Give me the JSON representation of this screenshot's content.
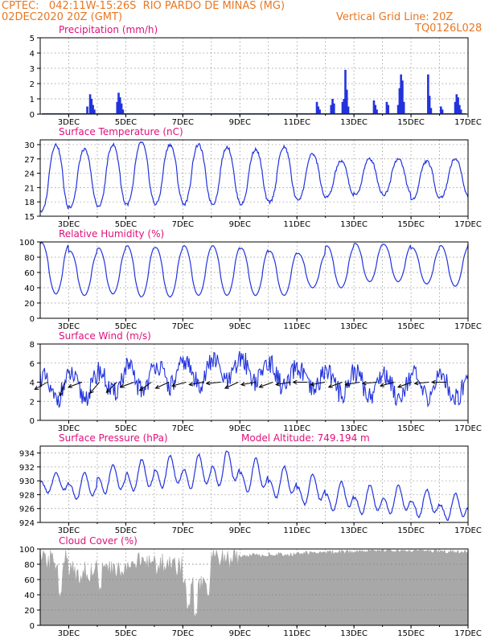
{
  "header": {
    "line1_left": "CPTEC:   042:11W-15:26S  RIO PARDO DE MINAS (MG)",
    "line2_left": "02DEC2020 20Z (GMT)",
    "line2_right": "Vertical Grid Line: 20Z",
    "line3_right": "TQ0126L028"
  },
  "colors": {
    "header": "#e87722",
    "panel_title": "#e0107a",
    "series": "#2233dd",
    "axis": "#000000",
    "grid": "#888888",
    "cloud_fill": "#a8a8a8",
    "wind_arrow": "#000000"
  },
  "chart_data": [
    {
      "type": "bar",
      "title": "Precipitation (mm/h)",
      "xlabel": "",
      "ylabel": "",
      "x_ticks": [
        "3DEC",
        "5DEC",
        "7DEC",
        "9DEC",
        "11DEC",
        "13DEC",
        "15DEC",
        "17DEC"
      ],
      "ylim": [
        0,
        5
      ],
      "y_ticks": [
        0,
        1,
        2,
        3,
        4,
        5
      ],
      "time_range_days": [
        2.0,
        17.0
      ],
      "events": [
        {
          "t": 3.65,
          "v": 0.5
        },
        {
          "t": 3.75,
          "v": 1.3
        },
        {
          "t": 3.8,
          "v": 1.0
        },
        {
          "t": 3.85,
          "v": 0.6
        },
        {
          "t": 3.9,
          "v": 0.3
        },
        {
          "t": 4.7,
          "v": 0.8
        },
        {
          "t": 4.75,
          "v": 1.4
        },
        {
          "t": 4.8,
          "v": 1.1
        },
        {
          "t": 4.85,
          "v": 0.7
        },
        {
          "t": 4.9,
          "v": 0.3
        },
        {
          "t": 11.7,
          "v": 0.8
        },
        {
          "t": 11.75,
          "v": 0.5
        },
        {
          "t": 11.8,
          "v": 0.3
        },
        {
          "t": 12.2,
          "v": 0.6
        },
        {
          "t": 12.25,
          "v": 1.0
        },
        {
          "t": 12.3,
          "v": 0.7
        },
        {
          "t": 12.6,
          "v": 0.8
        },
        {
          "t": 12.65,
          "v": 1.0
        },
        {
          "t": 12.7,
          "v": 2.9
        },
        {
          "t": 12.75,
          "v": 1.6
        },
        {
          "t": 12.8,
          "v": 0.5
        },
        {
          "t": 13.7,
          "v": 0.9
        },
        {
          "t": 13.75,
          "v": 0.6
        },
        {
          "t": 13.8,
          "v": 0.3
        },
        {
          "t": 14.15,
          "v": 0.8
        },
        {
          "t": 14.2,
          "v": 0.6
        },
        {
          "t": 14.55,
          "v": 0.6
        },
        {
          "t": 14.6,
          "v": 1.7
        },
        {
          "t": 14.65,
          "v": 2.6
        },
        {
          "t": 14.7,
          "v": 2.2
        },
        {
          "t": 14.75,
          "v": 0.8
        },
        {
          "t": 15.6,
          "v": 2.6
        },
        {
          "t": 15.65,
          "v": 1.2
        },
        {
          "t": 15.7,
          "v": 0.4
        },
        {
          "t": 16.05,
          "v": 0.5
        },
        {
          "t": 16.1,
          "v": 0.3
        },
        {
          "t": 16.55,
          "v": 0.8
        },
        {
          "t": 16.6,
          "v": 1.3
        },
        {
          "t": 16.65,
          "v": 1.1
        },
        {
          "t": 16.7,
          "v": 0.6
        },
        {
          "t": 16.75,
          "v": 0.3
        }
      ]
    },
    {
      "type": "line",
      "title": "Surface Temperature (nC)",
      "x_ticks": [
        "3DEC",
        "5DEC",
        "7DEC",
        "9DEC",
        "11DEC",
        "13DEC",
        "15DEC",
        "17DEC"
      ],
      "ylim": [
        15,
        31
      ],
      "y_ticks": [
        15,
        18,
        21,
        24,
        27,
        30
      ],
      "daily_max": [
        30.0,
        29.0,
        30.0,
        30.5,
        30.0,
        30.0,
        29.5,
        29.0,
        29.5,
        28.0,
        26.5,
        27.0,
        27.0,
        26.5,
        27.0,
        28.0
      ],
      "daily_min": [
        16.0,
        17.0,
        17.0,
        17.5,
        17.5,
        17.5,
        17.5,
        17.5,
        18.0,
        18.5,
        19.0,
        19.5,
        19.5,
        18.5,
        19.0
      ]
    },
    {
      "type": "line",
      "title": "Relative Humidity (%)",
      "x_ticks": [
        "3DEC",
        "5DEC",
        "7DEC",
        "9DEC",
        "11DEC",
        "13DEC",
        "15DEC",
        "17DEC"
      ],
      "ylim": [
        0,
        100
      ],
      "y_ticks": [
        0,
        20,
        40,
        60,
        80,
        100
      ],
      "daily_max": [
        99,
        88,
        92,
        95,
        93,
        95,
        95,
        92,
        88,
        85,
        95,
        98,
        97,
        92,
        95,
        98
      ],
      "daily_min": [
        32,
        30,
        32,
        28,
        28,
        30,
        30,
        30,
        30,
        40,
        40,
        48,
        48,
        45,
        42
      ]
    },
    {
      "type": "line",
      "title": "Surface Wind (m/s)",
      "x_ticks": [
        "3DEC",
        "5DEC",
        "7DEC",
        "9DEC",
        "11DEC",
        "13DEC",
        "15DEC",
        "17DEC"
      ],
      "ylim": [
        0,
        8
      ],
      "y_ticks": [
        0,
        2,
        4,
        6,
        8
      ],
      "mean_speed": [
        3.4,
        3.6,
        4.0,
        4.4,
        4.8,
        5.0,
        5.2,
        5.3,
        4.6,
        4.2,
        4.0,
        3.8,
        3.7,
        3.6,
        3.5,
        3.2
      ],
      "arrows_direction_deg": [
        210,
        250,
        200,
        230,
        225,
        200,
        215,
        205,
        195,
        190,
        185,
        205,
        190,
        200,
        190,
        180,
        190,
        200,
        190,
        185,
        195,
        200,
        185,
        180
      ]
    },
    {
      "type": "line",
      "title": "Surface Pressure (hPa)",
      "subtitle": "Model Altitude: 749.194 m",
      "x_ticks": [
        "3DEC",
        "5DEC",
        "7DEC",
        "9DEC",
        "11DEC",
        "13DEC",
        "15DEC",
        "17DEC"
      ],
      "ylim": [
        924,
        935
      ],
      "y_ticks": [
        924,
        926,
        928,
        930,
        932,
        934
      ],
      "daily_level": [
        929.5,
        929.0,
        930.0,
        930.5,
        931.0,
        931.0,
        931.5,
        930.5,
        929.5,
        928.5,
        927.5,
        927.0,
        927.0,
        926.5,
        926.0,
        925.5
      ],
      "daily_amplitude": [
        1.6,
        2.2,
        2.4,
        2.6,
        2.6,
        2.8,
        2.9,
        2.8,
        2.6,
        2.5,
        2.4,
        2.4,
        2.3,
        2.2,
        2.2,
        2.0
      ]
    },
    {
      "type": "area",
      "title": "Cloud Cover (%)",
      "x_ticks": [
        "3DEC",
        "5DEC",
        "7DEC",
        "9DEC",
        "11DEC",
        "13DEC",
        "15DEC",
        "17DEC"
      ],
      "ylim": [
        0,
        100
      ],
      "y_ticks": [
        0,
        20,
        40,
        60,
        80,
        100
      ],
      "daily_mean": [
        85,
        70,
        72,
        82,
        80,
        50,
        88,
        92,
        93,
        95,
        96,
        98,
        98,
        98,
        97,
        98
      ],
      "dips": [
        {
          "t": 7.2,
          "v": 18
        },
        {
          "t": 7.45,
          "v": 10
        },
        {
          "t": 2.7,
          "v": 35
        },
        {
          "t": 4.1,
          "v": 42
        }
      ]
    }
  ]
}
